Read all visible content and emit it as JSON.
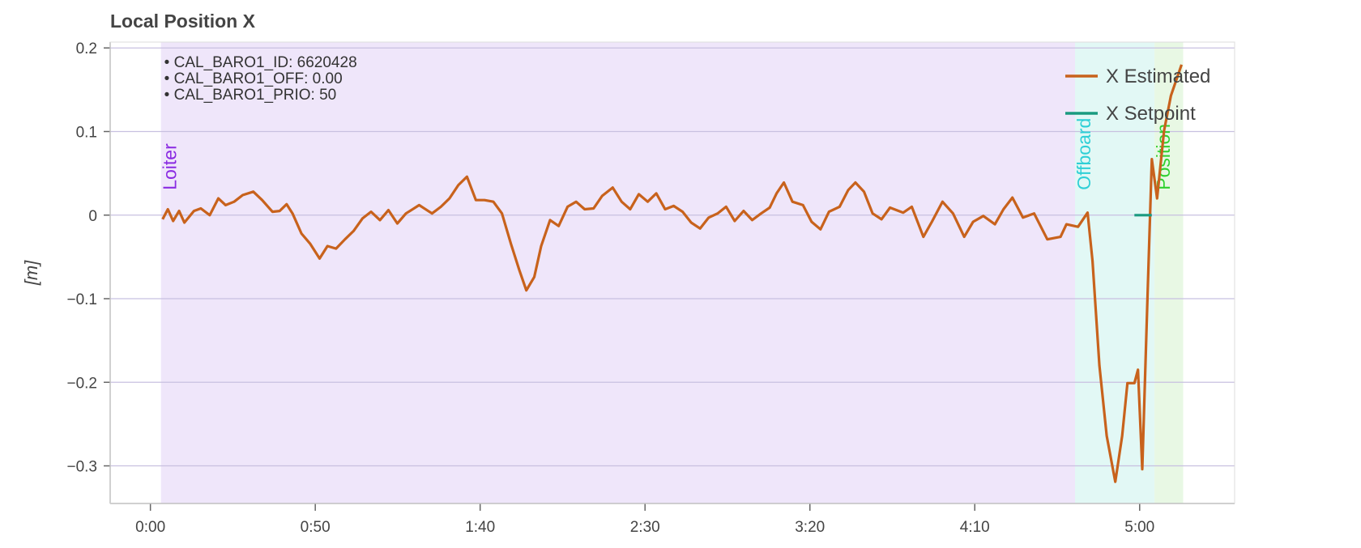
{
  "chart_data": {
    "type": "line",
    "title": "Local Position X",
    "y_label": "[m]",
    "xlim": [
      -12.2,
      328.8
    ],
    "ylim": [
      -0.345,
      0.207
    ],
    "xticks": [
      {
        "value": 0,
        "label": "0:00"
      },
      {
        "value": 50,
        "label": "0:50"
      },
      {
        "value": 100,
        "label": "1:40"
      },
      {
        "value": 150,
        "label": "2:30"
      },
      {
        "value": 200,
        "label": "3:20"
      },
      {
        "value": 250,
        "label": "4:10"
      },
      {
        "value": 300,
        "label": "5:00"
      }
    ],
    "yticks": [
      0.2,
      0.1,
      0,
      {
        "value": -0.1,
        "label": "−0.1"
      },
      {
        "value": -0.2,
        "label": "−0.2"
      },
      {
        "value": -0.3,
        "label": "−0.3"
      }
    ],
    "grid": true,
    "legend": "top-right",
    "regions": [
      {
        "label": "Loiter",
        "start": 3.2,
        "end": 280.4,
        "color": "#efe6fa",
        "label_color": "#8a2be2"
      },
      {
        "label": "Offboard",
        "start": 280.4,
        "end": 304.5,
        "color": "#e2f8f5",
        "label_color": "#2ecfd6"
      },
      {
        "label": "Position",
        "start": 304.5,
        "end": 313.2,
        "color": "#e8f8e4",
        "label_color": "#2fd02f"
      }
    ],
    "annotations": [
      "• CAL_BARO1_ID: 6620428",
      "• CAL_BARO1_OFF: 0.00",
      "• CAL_BARO1_PRIO: 50"
    ],
    "series": [
      {
        "name": "X Estimated",
        "color": "#c8621c",
        "x": [
          3.7,
          5.3,
          6.9,
          8.7,
          10.3,
          13.2,
          15.3,
          18,
          20.6,
          22.8,
          25.4,
          28,
          31.2,
          33.9,
          37,
          39.2,
          41.3,
          43.1,
          45.8,
          48.4,
          51.3,
          53.7,
          56.3,
          59,
          61.6,
          64.3,
          66.9,
          69.6,
          72.2,
          74.9,
          77.5,
          81.5,
          85.4,
          88.1,
          90.7,
          93.4,
          96,
          98.7,
          101.3,
          104,
          106.6,
          109.3,
          111.9,
          114,
          116.4,
          118.5,
          121.2,
          123.8,
          126.5,
          129.1,
          131.7,
          134.4,
          137,
          140.2,
          142.9,
          145.5,
          148.1,
          150.8,
          153.4,
          156.1,
          158.7,
          161.4,
          164,
          166.7,
          169.3,
          172,
          174.6,
          177.2,
          179.9,
          182.5,
          185.2,
          187.8,
          189.9,
          192.1,
          194.7,
          197.9,
          200.5,
          203.2,
          205.8,
          209,
          211.6,
          213.8,
          216.4,
          219,
          221.7,
          224.3,
          228.3,
          230.9,
          234.4,
          237,
          240.2,
          243.4,
          246.8,
          249.5,
          252.6,
          256.1,
          258.7,
          261.4,
          264.6,
          268,
          272,
          276,
          277.8,
          281.3,
          284.2,
          285.7,
          287.8,
          290,
          292.6,
          294.7,
          296.3,
          298.4,
          299.5,
          300.8,
          302.4,
          303.7,
          305.3,
          307.4,
          309.5,
          312.7
        ],
        "values": [
          -0.005,
          0.007,
          -0.007,
          0.005,
          -0.009,
          0.005,
          0.008,
          0,
          0.02,
          0.012,
          0.016,
          0.024,
          0.028,
          0.018,
          0.004,
          0.005,
          0.013,
          0.002,
          -0.022,
          -0.034,
          -0.052,
          -0.037,
          -0.04,
          -0.029,
          -0.019,
          -0.004,
          0.004,
          -0.006,
          0.006,
          -0.01,
          0.002,
          0.012,
          0.002,
          0.01,
          0.02,
          0.036,
          0.046,
          0.018,
          0.018,
          0.016,
          0.002,
          -0.034,
          -0.066,
          -0.09,
          -0.074,
          -0.037,
          -0.006,
          -0.013,
          0.01,
          0.016,
          0.007,
          0.008,
          0.023,
          0.033,
          0.016,
          0.007,
          0.025,
          0.016,
          0.026,
          0.007,
          0.011,
          0.004,
          -0.009,
          -0.016,
          -0.003,
          0.002,
          0.01,
          -0.007,
          0.005,
          -0.006,
          0.002,
          0.009,
          0.026,
          0.039,
          0.016,
          0.012,
          -0.008,
          -0.017,
          0.004,
          0.01,
          0.03,
          0.039,
          0.028,
          0.002,
          -0.005,
          0.009,
          0.003,
          0.01,
          -0.026,
          -0.008,
          0.016,
          0.002,
          -0.026,
          -0.008,
          -0.001,
          -0.011,
          0.007,
          0.021,
          -0.003,
          0.002,
          -0.029,
          -0.026,
          -0.011,
          -0.014,
          0.003,
          -0.055,
          -0.18,
          -0.264,
          -0.319,
          -0.264,
          -0.201,
          -0.201,
          -0.185,
          -0.304,
          -0.097,
          0.067,
          0.02,
          0.101,
          0.143,
          0.18
        ]
      },
      {
        "name": "X Setpoint",
        "color": "#1a9a80",
        "x": [
          298.4,
          303.7
        ],
        "values": [
          0,
          0
        ]
      }
    ]
  }
}
